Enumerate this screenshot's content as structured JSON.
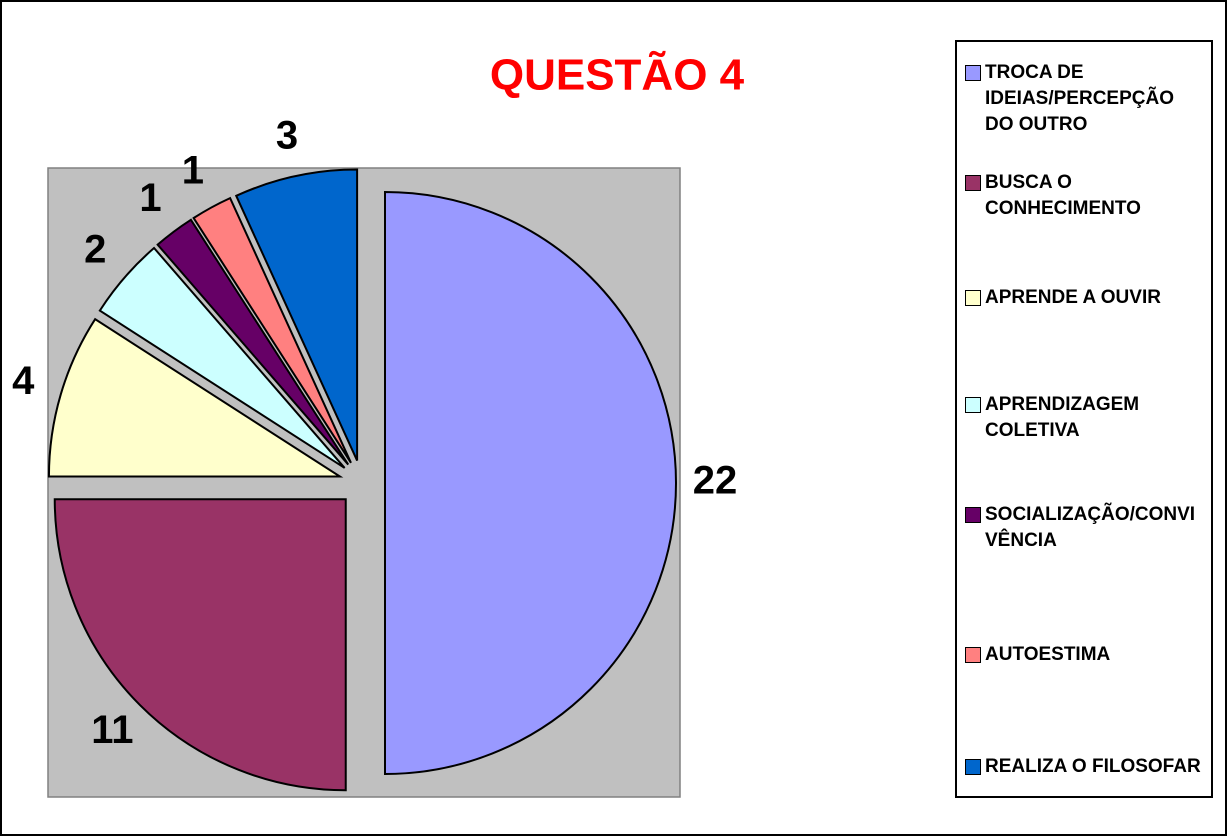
{
  "chart_data": {
    "type": "pie",
    "title": "QUESTÃO 4",
    "categories": [
      "TROCA DE IDEIAS/PERCEPÇÃO DO OUTRO",
      "BUSCA O CONHECIMENTO",
      "APRENDE A OUVIR",
      "APRENDIZAGEM COLETIVA",
      "SOCIALIZAÇÃO/CONVIVÊNCIA",
      "AUTOESTIMA",
      "REALIZA O FILOSOFAR"
    ],
    "values": [
      22,
      11,
      4,
      2,
      1,
      1,
      3
    ],
    "colors": [
      "#9999ff",
      "#993366",
      "#ffffcc",
      "#ccffff",
      "#660066",
      "#ff8080",
      "#0066cc"
    ],
    "legend": "right"
  }
}
